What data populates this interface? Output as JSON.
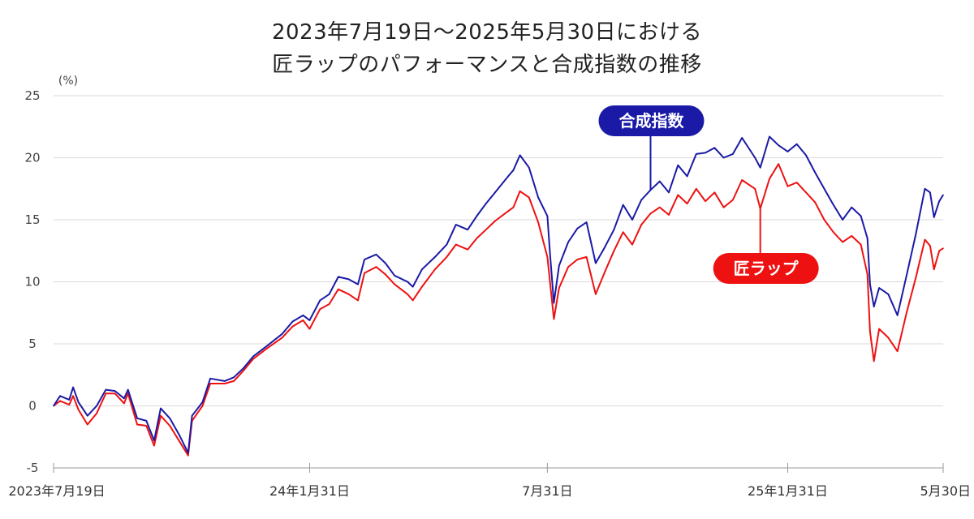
{
  "title": {
    "line1": "2023年7月19日～2025年5月30日における",
    "line2": "匠ラップのパフォーマンスと合成指数の推移"
  },
  "colors": {
    "index": "#1a1aa6",
    "wrap": "#ee1111",
    "grid": "#d9d9d9",
    "axis": "#999999"
  },
  "chart_data": {
    "type": "line",
    "title": "2023年7月19日～2025年5月30日における匠ラップのパフォーマンスと合成指数の推移",
    "ylabel": "(%)",
    "ylim": [
      -5,
      25
    ],
    "yticks": [
      -5,
      0,
      5,
      10,
      15,
      20,
      25
    ],
    "ytick_labels": [
      "-5",
      "0",
      "5",
      "10",
      "15",
      "20",
      "25"
    ],
    "xlim": [
      "2023-07-19",
      "2025-05-30"
    ],
    "xticks": [
      {
        "date": "2023-07-19",
        "label": "2023年7月19日"
      },
      {
        "date": "2024-01-31",
        "label": "24年1月31日"
      },
      {
        "date": "2024-07-31",
        "label": "7月31日"
      },
      {
        "date": "2025-01-31",
        "label": "25年1月31日"
      },
      {
        "date": "2025-05-30",
        "label": "5月30日"
      }
    ],
    "grid": true,
    "series": [
      {
        "name": "合成指数",
        "color": "#1a1aa6",
        "points": [
          [
            "2023-07-19",
            0.0
          ],
          [
            "2023-07-24",
            0.8
          ],
          [
            "2023-07-31",
            0.5
          ],
          [
            "2023-08-03",
            1.5
          ],
          [
            "2023-08-07",
            0.3
          ],
          [
            "2023-08-14",
            -0.8
          ],
          [
            "2023-08-21",
            0.0
          ],
          [
            "2023-08-28",
            1.3
          ],
          [
            "2023-09-04",
            1.2
          ],
          [
            "2023-09-11",
            0.6
          ],
          [
            "2023-09-14",
            1.3
          ],
          [
            "2023-09-21",
            -1.0
          ],
          [
            "2023-09-28",
            -1.2
          ],
          [
            "2023-10-04",
            -2.8
          ],
          [
            "2023-10-09",
            -0.2
          ],
          [
            "2023-10-16",
            -1.0
          ],
          [
            "2023-10-23",
            -2.3
          ],
          [
            "2023-10-30",
            -3.8
          ],
          [
            "2023-11-02",
            -0.8
          ],
          [
            "2023-11-10",
            0.3
          ],
          [
            "2023-11-16",
            2.2
          ],
          [
            "2023-11-27",
            2.0
          ],
          [
            "2023-12-04",
            2.3
          ],
          [
            "2023-12-11",
            3.0
          ],
          [
            "2023-12-19",
            4.0
          ],
          [
            "2023-12-29",
            4.8
          ],
          [
            "2024-01-10",
            5.8
          ],
          [
            "2024-01-18",
            6.8
          ],
          [
            "2024-01-26",
            7.3
          ],
          [
            "2024-01-31",
            6.9
          ],
          [
            "2024-02-08",
            8.5
          ],
          [
            "2024-02-15",
            9.0
          ],
          [
            "2024-02-22",
            10.4
          ],
          [
            "2024-03-01",
            10.2
          ],
          [
            "2024-03-08",
            9.8
          ],
          [
            "2024-03-13",
            11.8
          ],
          [
            "2024-03-22",
            12.2
          ],
          [
            "2024-03-29",
            11.5
          ],
          [
            "2024-04-05",
            10.5
          ],
          [
            "2024-04-15",
            10.0
          ],
          [
            "2024-04-19",
            9.6
          ],
          [
            "2024-04-26",
            11.0
          ],
          [
            "2024-05-06",
            12.0
          ],
          [
            "2024-05-15",
            13.0
          ],
          [
            "2024-05-22",
            14.6
          ],
          [
            "2024-05-31",
            14.2
          ],
          [
            "2024-06-07",
            15.3
          ],
          [
            "2024-06-14",
            16.3
          ],
          [
            "2024-06-21",
            17.2
          ],
          [
            "2024-07-01",
            18.5
          ],
          [
            "2024-07-05",
            19.0
          ],
          [
            "2024-07-10",
            20.2
          ],
          [
            "2024-07-17",
            19.2
          ],
          [
            "2024-07-24",
            16.8
          ],
          [
            "2024-07-31",
            15.3
          ],
          [
            "2024-08-02",
            12.3
          ],
          [
            "2024-08-05",
            8.3
          ],
          [
            "2024-08-09",
            11.3
          ],
          [
            "2024-08-16",
            13.2
          ],
          [
            "2024-08-23",
            14.3
          ],
          [
            "2024-08-30",
            14.8
          ],
          [
            "2024-09-06",
            11.5
          ],
          [
            "2024-09-13",
            12.8
          ],
          [
            "2024-09-20",
            14.2
          ],
          [
            "2024-09-27",
            16.2
          ],
          [
            "2024-10-04",
            15.0
          ],
          [
            "2024-10-11",
            16.6
          ],
          [
            "2024-10-18",
            17.4
          ],
          [
            "2024-10-25",
            18.1
          ],
          [
            "2024-11-01",
            17.2
          ],
          [
            "2024-11-08",
            19.4
          ],
          [
            "2024-11-15",
            18.5
          ],
          [
            "2024-11-22",
            20.3
          ],
          [
            "2024-11-29",
            20.4
          ],
          [
            "2024-12-06",
            20.8
          ],
          [
            "2024-12-13",
            20.0
          ],
          [
            "2024-12-20",
            20.3
          ],
          [
            "2024-12-27",
            21.6
          ],
          [
            "2025-01-06",
            20.0
          ],
          [
            "2025-01-10",
            19.2
          ],
          [
            "2025-01-17",
            21.7
          ],
          [
            "2025-01-24",
            21.0
          ],
          [
            "2025-01-31",
            20.5
          ],
          [
            "2025-02-07",
            21.1
          ],
          [
            "2025-02-14",
            20.2
          ],
          [
            "2025-02-21",
            18.8
          ],
          [
            "2025-02-28",
            17.5
          ],
          [
            "2025-03-07",
            16.2
          ],
          [
            "2025-03-14",
            15.0
          ],
          [
            "2025-03-21",
            16.0
          ],
          [
            "2025-03-28",
            15.3
          ],
          [
            "2025-04-02",
            13.5
          ],
          [
            "2025-04-04",
            9.8
          ],
          [
            "2025-04-07",
            8.0
          ],
          [
            "2025-04-11",
            9.5
          ],
          [
            "2025-04-18",
            9.0
          ],
          [
            "2025-04-25",
            7.3
          ],
          [
            "2025-05-02",
            10.5
          ],
          [
            "2025-05-09",
            13.8
          ],
          [
            "2025-05-16",
            17.5
          ],
          [
            "2025-05-20",
            17.2
          ],
          [
            "2025-05-23",
            15.2
          ],
          [
            "2025-05-27",
            16.5
          ],
          [
            "2025-05-30",
            17.0
          ]
        ]
      },
      {
        "name": "匠ラップ",
        "color": "#ee1111",
        "points": [
          [
            "2023-07-19",
            0.0
          ],
          [
            "2023-07-24",
            0.4
          ],
          [
            "2023-07-31",
            0.1
          ],
          [
            "2023-08-03",
            0.8
          ],
          [
            "2023-08-07",
            -0.3
          ],
          [
            "2023-08-14",
            -1.5
          ],
          [
            "2023-08-21",
            -0.6
          ],
          [
            "2023-08-28",
            1.0
          ],
          [
            "2023-09-04",
            1.0
          ],
          [
            "2023-09-11",
            0.2
          ],
          [
            "2023-09-14",
            1.0
          ],
          [
            "2023-09-21",
            -1.5
          ],
          [
            "2023-09-28",
            -1.6
          ],
          [
            "2023-10-04",
            -3.2
          ],
          [
            "2023-10-09",
            -0.8
          ],
          [
            "2023-10-16",
            -1.6
          ],
          [
            "2023-10-23",
            -2.8
          ],
          [
            "2023-10-30",
            -4.0
          ],
          [
            "2023-11-02",
            -1.2
          ],
          [
            "2023-11-10",
            0.0
          ],
          [
            "2023-11-16",
            1.8
          ],
          [
            "2023-11-27",
            1.8
          ],
          [
            "2023-12-04",
            2.0
          ],
          [
            "2023-12-11",
            2.8
          ],
          [
            "2023-12-19",
            3.8
          ],
          [
            "2023-12-29",
            4.6
          ],
          [
            "2024-01-10",
            5.5
          ],
          [
            "2024-01-18",
            6.4
          ],
          [
            "2024-01-26",
            6.9
          ],
          [
            "2024-01-31",
            6.2
          ],
          [
            "2024-02-08",
            7.8
          ],
          [
            "2024-02-15",
            8.2
          ],
          [
            "2024-02-22",
            9.4
          ],
          [
            "2024-03-01",
            9.0
          ],
          [
            "2024-03-08",
            8.5
          ],
          [
            "2024-03-13",
            10.7
          ],
          [
            "2024-03-22",
            11.2
          ],
          [
            "2024-03-29",
            10.6
          ],
          [
            "2024-04-05",
            9.8
          ],
          [
            "2024-04-15",
            9.0
          ],
          [
            "2024-04-19",
            8.5
          ],
          [
            "2024-04-26",
            9.6
          ],
          [
            "2024-05-06",
            11.0
          ],
          [
            "2024-05-15",
            12.0
          ],
          [
            "2024-05-22",
            13.0
          ],
          [
            "2024-05-31",
            12.6
          ],
          [
            "2024-06-07",
            13.5
          ],
          [
            "2024-06-14",
            14.2
          ],
          [
            "2024-06-21",
            14.9
          ],
          [
            "2024-07-01",
            15.7
          ],
          [
            "2024-07-05",
            16.0
          ],
          [
            "2024-07-10",
            17.3
          ],
          [
            "2024-07-17",
            16.8
          ],
          [
            "2024-07-24",
            14.8
          ],
          [
            "2024-07-31",
            12.0
          ],
          [
            "2024-08-02",
            10.0
          ],
          [
            "2024-08-05",
            7.0
          ],
          [
            "2024-08-09",
            9.5
          ],
          [
            "2024-08-16",
            11.2
          ],
          [
            "2024-08-23",
            11.8
          ],
          [
            "2024-08-30",
            12.0
          ],
          [
            "2024-09-06",
            9.0
          ],
          [
            "2024-09-13",
            10.8
          ],
          [
            "2024-09-20",
            12.5
          ],
          [
            "2024-09-27",
            14.0
          ],
          [
            "2024-10-04",
            13.0
          ],
          [
            "2024-10-11",
            14.6
          ],
          [
            "2024-10-18",
            15.5
          ],
          [
            "2024-10-25",
            16.0
          ],
          [
            "2024-11-01",
            15.4
          ],
          [
            "2024-11-08",
            17.0
          ],
          [
            "2024-11-15",
            16.3
          ],
          [
            "2024-11-22",
            17.5
          ],
          [
            "2024-11-29",
            16.5
          ],
          [
            "2024-12-06",
            17.2
          ],
          [
            "2024-12-13",
            16.0
          ],
          [
            "2024-12-20",
            16.6
          ],
          [
            "2024-12-27",
            18.2
          ],
          [
            "2025-01-06",
            17.5
          ],
          [
            "2025-01-10",
            15.9
          ],
          [
            "2025-01-17",
            18.3
          ],
          [
            "2025-01-24",
            19.5
          ],
          [
            "2025-01-31",
            17.7
          ],
          [
            "2025-02-07",
            18.0
          ],
          [
            "2025-02-14",
            17.2
          ],
          [
            "2025-02-21",
            16.4
          ],
          [
            "2025-02-28",
            15.0
          ],
          [
            "2025-03-07",
            14.0
          ],
          [
            "2025-03-14",
            13.2
          ],
          [
            "2025-03-21",
            13.7
          ],
          [
            "2025-03-28",
            13.0
          ],
          [
            "2025-04-02",
            10.6
          ],
          [
            "2025-04-04",
            6.0
          ],
          [
            "2025-04-07",
            3.6
          ],
          [
            "2025-04-11",
            6.2
          ],
          [
            "2025-04-18",
            5.5
          ],
          [
            "2025-04-25",
            4.4
          ],
          [
            "2025-05-02",
            7.5
          ],
          [
            "2025-05-09",
            10.3
          ],
          [
            "2025-05-16",
            13.4
          ],
          [
            "2025-05-20",
            12.9
          ],
          [
            "2025-05-23",
            11.0
          ],
          [
            "2025-05-27",
            12.5
          ],
          [
            "2025-05-30",
            12.7
          ]
        ]
      }
    ],
    "annotations": [
      {
        "text": "合成指数",
        "series": "合成指数",
        "color": "#1a1aa6",
        "date": "2024-10-18",
        "value": 17.4
      },
      {
        "text": "匠ラップ",
        "series": "匠ラップ",
        "color": "#ee1111",
        "date": "2025-01-10",
        "value": 15.9
      }
    ]
  }
}
